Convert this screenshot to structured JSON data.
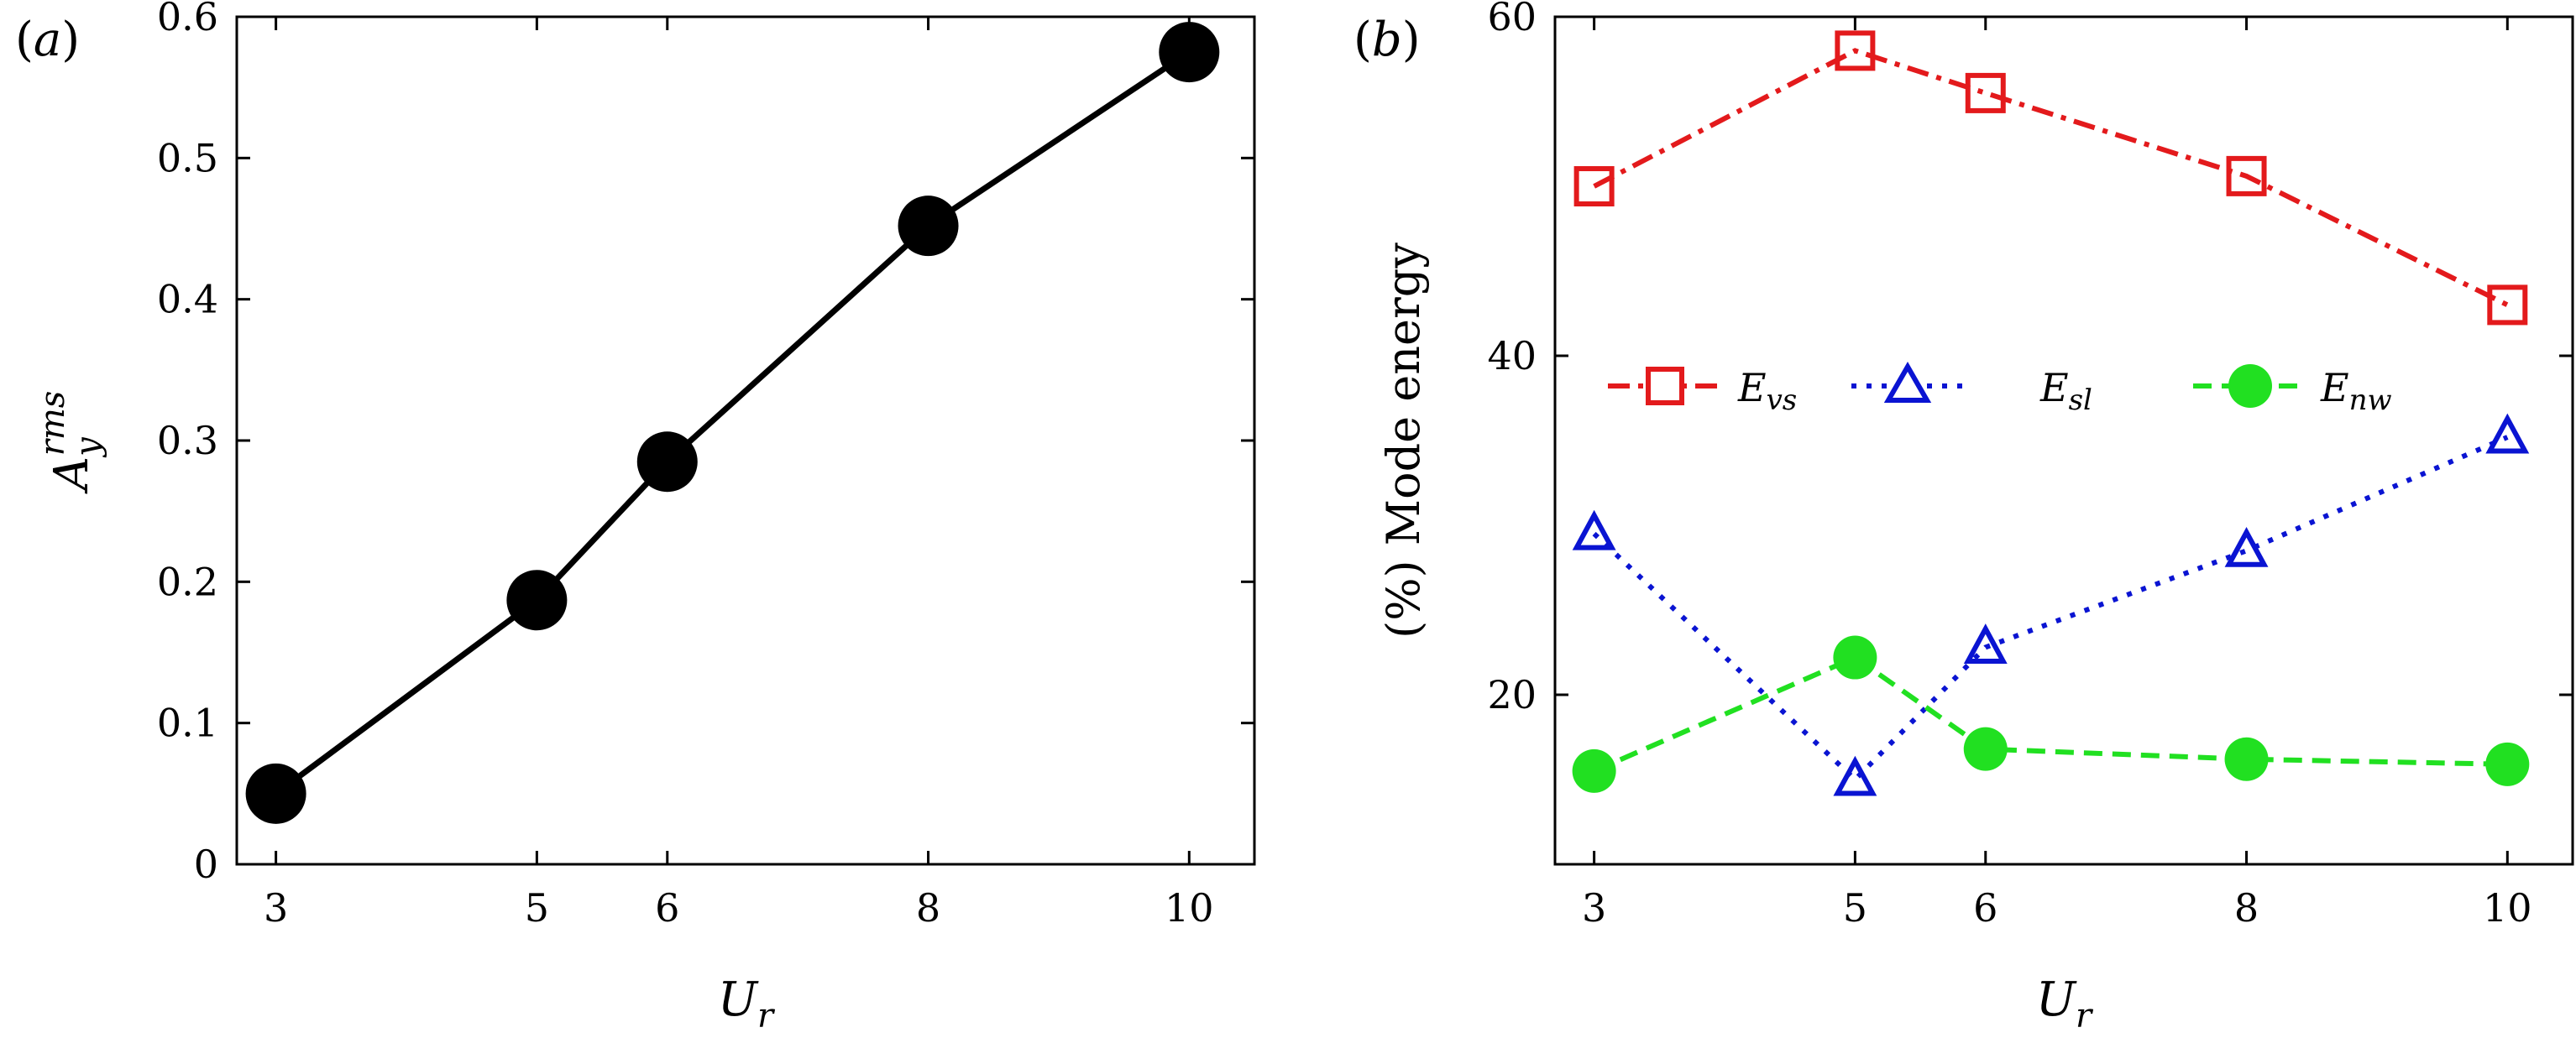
{
  "chart_data": [
    {
      "panel": "(a)",
      "panel_open": "(",
      "panel_letter": "a",
      "panel_close": ")",
      "type": "line",
      "x": [
        3,
        5,
        6,
        8,
        10
      ],
      "series": [
        {
          "name": "A_y^rms",
          "values": [
            0.05,
            0.187,
            0.285,
            0.452,
            0.575
          ],
          "color": "#000000",
          "marker": "filled-circle",
          "line": "solid"
        }
      ],
      "xlabel": "U",
      "xlabel_sub": "r",
      "ylabel": "A",
      "ylabel_sub": "y",
      "ylabel_sup": "rms",
      "xticks": [
        3,
        5,
        6,
        8,
        10
      ],
      "xtick_labels": [
        "3",
        "5",
        "6",
        "8",
        "10"
      ],
      "yticks": [
        0,
        0.1,
        0.2,
        0.3,
        0.4,
        0.5,
        0.6
      ],
      "ytick_labels": [
        "0",
        "0.1",
        "0.2",
        "0.3",
        "0.4",
        "0.5",
        "0.6"
      ],
      "xlim": [
        2.7,
        10.5
      ],
      "ylim": [
        0,
        0.6
      ]
    },
    {
      "panel": "(b)",
      "panel_open": "(",
      "panel_letter": "b",
      "panel_close": ")",
      "type": "line",
      "x": [
        3,
        5,
        6,
        8,
        10
      ],
      "series": [
        {
          "name": "E_vs",
          "label_main": "E",
          "label_sub": "vs",
          "values": [
            50,
            58,
            55.5,
            50.6,
            43
          ],
          "color": "#e31a1c",
          "marker": "open-square",
          "line": "dash-dot"
        },
        {
          "name": "E_sl",
          "label_main": "E",
          "label_sub": "sl",
          "values": [
            29.5,
            15,
            22.8,
            28.5,
            35.2
          ],
          "color": "#0a14d2",
          "marker": "open-triangle",
          "line": "dotted"
        },
        {
          "name": "E_nw",
          "label_main": "E",
          "label_sub": "nw",
          "values": [
            15.5,
            22.2,
            16.8,
            16.2,
            15.9
          ],
          "color": "#21e021",
          "marker": "filled-circle",
          "line": "dashed"
        }
      ],
      "xlabel": "U",
      "xlabel_sub": "r",
      "ylabel_pct": "(%)",
      "ylabel_text": "Mode energy",
      "xticks": [
        3,
        5,
        6,
        8,
        10
      ],
      "xtick_labels": [
        "3",
        "5",
        "6",
        "8",
        "10"
      ],
      "yticks": [
        20,
        40,
        60
      ],
      "ytick_labels": [
        "20",
        "40",
        "60"
      ],
      "xlim": [
        2.7,
        10.5
      ],
      "ylim": [
        10,
        60
      ],
      "legend_position": "center-left"
    }
  ]
}
